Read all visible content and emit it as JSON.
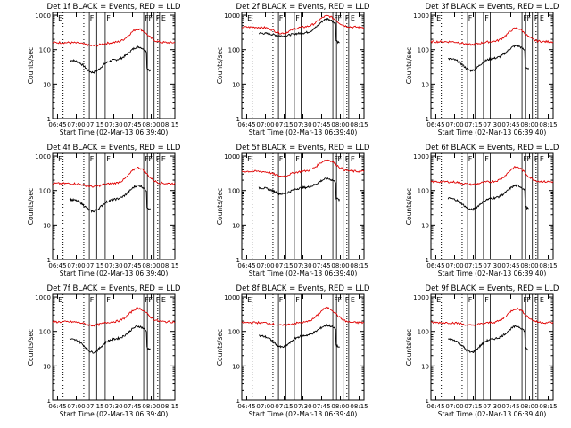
{
  "figure": {
    "background": "#ffffff",
    "colors": {
      "events": "#000000",
      "lld": "#e00000",
      "axis": "#000000"
    }
  },
  "chart_data": [
    {
      "type": "line",
      "title": "Det 1f BLACK = Events, RED = LLD",
      "xlabel": "Start Time (02-Mar-13 06:39:40)",
      "ylabel": "Counts/sec",
      "x_ticks": [
        "06:45",
        "07:00",
        "07:15",
        "07:30",
        "07:45",
        "08:00",
        "08:15"
      ],
      "y_ticks": [
        "1",
        "10",
        "100",
        "1000"
      ],
      "ylim": [
        1,
        1200
      ],
      "log_y": true,
      "marker_letters": [
        "E",
        "F",
        "F",
        "F",
        "F",
        "F",
        "E"
      ],
      "series": [
        {
          "color": "#000000",
          "level": 50,
          "dip": 22,
          "peak": 120,
          "end_drop": true
        },
        {
          "color": "#e00000",
          "level": 160,
          "dip": 130,
          "peak": 400
        }
      ]
    },
    {
      "type": "line",
      "title": "Det 2f BLACK = Events, RED = LLD",
      "xlabel": "Start Time (02-Mar-13 06:39:40)",
      "ylabel": "Counts/sec",
      "x_ticks": [
        "06:45",
        "07:00",
        "07:15",
        "07:30",
        "07:45",
        "08:00",
        "08:15"
      ],
      "y_ticks": [
        "1",
        "10",
        "100",
        "1000"
      ],
      "ylim": [
        1,
        1200
      ],
      "log_y": true,
      "marker_letters": [
        "E",
        "F",
        "F",
        "F",
        "F",
        "F",
        "E"
      ],
      "series": [
        {
          "color": "#000000",
          "level": 300,
          "dip": 250,
          "peak": 780,
          "end_drop": true
        },
        {
          "color": "#e00000",
          "level": 450,
          "dip": 300,
          "peak": 950
        }
      ]
    },
    {
      "type": "line",
      "title": "Det 3f BLACK = Events, RED = LLD",
      "xlabel": "Start Time (02-Mar-13 06:39:40)",
      "ylabel": "Counts/sec",
      "x_ticks": [
        "06:45",
        "07:00",
        "07:15",
        "07:30",
        "07:45",
        "08:00",
        "08:15"
      ],
      "y_ticks": [
        "1",
        "10",
        "100",
        "1000"
      ],
      "ylim": [
        1,
        1200
      ],
      "log_y": true,
      "marker_letters": [
        "E",
        "F",
        "F",
        "F",
        "F",
        "F",
        "E"
      ],
      "series": [
        {
          "color": "#000000",
          "level": 55,
          "dip": 25,
          "peak": 130,
          "end_drop": true
        },
        {
          "color": "#e00000",
          "level": 170,
          "dip": 140,
          "peak": 420
        }
      ]
    },
    {
      "type": "line",
      "title": "Det 4f BLACK = Events, RED = LLD",
      "xlabel": "Start Time (02-Mar-13 06:39:40)",
      "ylabel": "Counts/sec",
      "x_ticks": [
        "06:45",
        "07:00",
        "07:15",
        "07:30",
        "07:45",
        "08:00",
        "08:15"
      ],
      "y_ticks": [
        "1",
        "10",
        "100",
        "1000"
      ],
      "ylim": [
        1,
        1200
      ],
      "log_y": true,
      "marker_letters": [
        "E",
        "F",
        "F",
        "F",
        "F",
        "F",
        "E"
      ],
      "series": [
        {
          "color": "#000000",
          "level": 55,
          "dip": 25,
          "peak": 140,
          "end_drop": true
        },
        {
          "color": "#e00000",
          "level": 160,
          "dip": 130,
          "peak": 460
        }
      ]
    },
    {
      "type": "line",
      "title": "Det 5f BLACK = Events, RED = LLD",
      "xlabel": "Start Time (02-Mar-13 06:39:40)",
      "ylabel": "Counts/sec",
      "x_ticks": [
        "06:45",
        "07:00",
        "07:15",
        "07:30",
        "07:45",
        "08:00",
        "08:15"
      ],
      "y_ticks": [
        "1",
        "10",
        "100",
        "1000"
      ],
      "ylim": [
        1,
        1200
      ],
      "log_y": true,
      "marker_letters": [
        "E",
        "F",
        "F",
        "F",
        "F",
        "F",
        "E"
      ],
      "series": [
        {
          "color": "#000000",
          "level": 120,
          "dip": 80,
          "peak": 220,
          "end_drop": true
        },
        {
          "color": "#e00000",
          "level": 360,
          "dip": 260,
          "peak": 780
        }
      ]
    },
    {
      "type": "line",
      "title": "Det 6f BLACK = Events, RED = LLD",
      "xlabel": "Start Time (02-Mar-13 06:39:40)",
      "ylabel": "Counts/sec",
      "x_ticks": [
        "06:45",
        "07:00",
        "07:15",
        "07:30",
        "07:45",
        "08:00",
        "08:15"
      ],
      "y_ticks": [
        "1",
        "10",
        "100",
        "1000"
      ],
      "ylim": [
        1,
        1200
      ],
      "log_y": true,
      "marker_letters": [
        "E",
        "F",
        "F",
        "F",
        "F",
        "F",
        "E"
      ],
      "series": [
        {
          "color": "#000000",
          "level": 60,
          "dip": 28,
          "peak": 140,
          "end_drop": true
        },
        {
          "color": "#e00000",
          "level": 180,
          "dip": 150,
          "peak": 480
        }
      ]
    },
    {
      "type": "line",
      "title": "Det 7f BLACK = Events, RED = LLD",
      "xlabel": "Start Time (02-Mar-13 06:39:40)",
      "ylabel": "Counts/sec",
      "x_ticks": [
        "06:45",
        "07:00",
        "07:15",
        "07:30",
        "07:45",
        "08:00",
        "08:15"
      ],
      "y_ticks": [
        "1",
        "10",
        "100",
        "1000"
      ],
      "ylim": [
        1,
        1200
      ],
      "log_y": true,
      "marker_letters": [
        "E",
        "F",
        "F",
        "F",
        "F",
        "F",
        "E"
      ],
      "series": [
        {
          "color": "#000000",
          "level": 60,
          "dip": 25,
          "peak": 140,
          "end_drop": true
        },
        {
          "color": "#e00000",
          "level": 190,
          "dip": 150,
          "peak": 470
        }
      ]
    },
    {
      "type": "line",
      "title": "Det 8f BLACK = Events, RED = LLD",
      "xlabel": "Start Time (02-Mar-13 06:39:40)",
      "ylabel": "Counts/sec",
      "x_ticks": [
        "06:45",
        "07:00",
        "07:15",
        "07:30",
        "07:45",
        "08:00",
        "08:15"
      ],
      "y_ticks": [
        "1",
        "10",
        "100",
        "1000"
      ],
      "ylim": [
        1,
        1200
      ],
      "log_y": true,
      "marker_letters": [
        "E",
        "F",
        "F",
        "F",
        "F",
        "F",
        "E"
      ],
      "series": [
        {
          "color": "#000000",
          "level": 75,
          "dip": 35,
          "peak": 150,
          "end_drop": true
        },
        {
          "color": "#e00000",
          "level": 180,
          "dip": 150,
          "peak": 480
        }
      ]
    },
    {
      "type": "line",
      "title": "Det 9f BLACK = Events, RED = LLD",
      "xlabel": "Start Time (02-Mar-13 06:39:40)",
      "ylabel": "Counts/sec",
      "x_ticks": [
        "06:45",
        "07:00",
        "07:15",
        "07:30",
        "07:45",
        "08:00",
        "08:15"
      ],
      "y_ticks": [
        "1",
        "10",
        "100",
        "1000"
      ],
      "ylim": [
        1,
        1200
      ],
      "log_y": true,
      "marker_letters": [
        "E",
        "F",
        "F",
        "F",
        "F",
        "F",
        "E"
      ],
      "series": [
        {
          "color": "#000000",
          "level": 60,
          "dip": 25,
          "peak": 140,
          "end_drop": true
        },
        {
          "color": "#e00000",
          "level": 180,
          "dip": 150,
          "peak": 460
        }
      ]
    }
  ]
}
